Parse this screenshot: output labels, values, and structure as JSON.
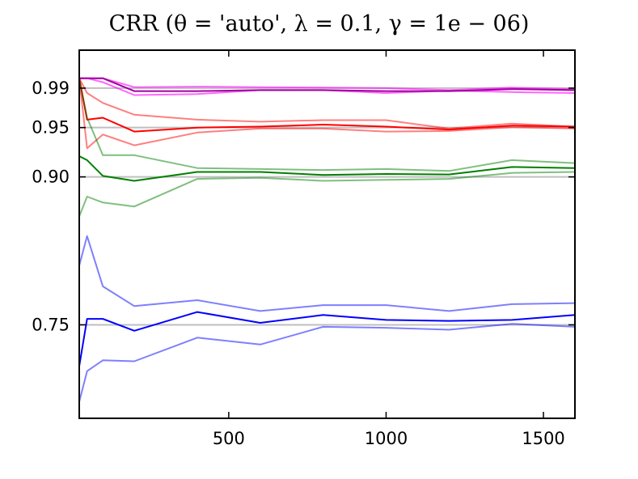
{
  "chart_data": {
    "type": "line",
    "title": "CRR (θ = 'auto', λ = 0.1, γ = 1e − 06)",
    "xlabel": "",
    "ylabel": "",
    "xlim": [
      25,
      1600
    ],
    "ylim": [
      0.6552,
      1.0285
    ],
    "xticks": [
      500,
      1000,
      1500
    ],
    "xtick_labels": [
      "500",
      "1000",
      "1500"
    ],
    "yticks": [
      0.75,
      0.9,
      0.95,
      0.99
    ],
    "ytick_labels": [
      "0.75",
      "0.90",
      "0.95",
      "0.99"
    ],
    "hlines": [
      0.75,
      0.9,
      0.95,
      0.99
    ],
    "hline_color": "#bfbfbf",
    "grid": false,
    "legend": null,
    "series": [
      {
        "color": "#ff00ff",
        "opacity": 0.6,
        "width": 2,
        "x": [
          25,
          50,
          100,
          200,
          400,
          600,
          800,
          1000,
          1200,
          1400,
          1600
        ],
        "y": [
          1.0,
          1.0,
          1.0,
          0.991,
          0.9915,
          0.991,
          0.9905,
          0.99,
          0.988,
          0.9905,
          0.989
        ]
      },
      {
        "color": "#ff00ff",
        "opacity": 0.6,
        "width": 2,
        "x": [
          25,
          50,
          100,
          200,
          400,
          600,
          800,
          1000,
          1200,
          1400,
          1600
        ],
        "y": [
          1.0,
          1.0,
          0.996,
          0.983,
          0.984,
          0.988,
          0.988,
          0.985,
          0.9875,
          0.986,
          0.985
        ]
      },
      {
        "color": "#a000a0",
        "opacity": 1,
        "width": 2,
        "x": [
          25,
          50,
          100,
          200,
          400,
          600,
          800,
          1000,
          1200,
          1400,
          1600
        ],
        "y": [
          1.0,
          1.0,
          1.0,
          0.987,
          0.987,
          0.988,
          0.988,
          0.987,
          0.987,
          0.989,
          0.988
        ]
      },
      {
        "color": "#ff0000",
        "opacity": 0.5,
        "width": 2,
        "x": [
          25,
          50,
          100,
          200,
          400,
          600,
          800,
          1000,
          1200,
          1400,
          1600
        ],
        "y": [
          1.0,
          0.985,
          0.975,
          0.963,
          0.958,
          0.956,
          0.9575,
          0.9575,
          0.949,
          0.954,
          0.951
        ]
      },
      {
        "color": "#ff0000",
        "opacity": 0.5,
        "width": 2,
        "x": [
          25,
          50,
          100,
          200,
          400,
          600,
          800,
          1000,
          1200,
          1400,
          1600
        ],
        "y": [
          1.0,
          0.929,
          0.943,
          0.932,
          0.945,
          0.949,
          0.949,
          0.946,
          0.9465,
          0.9505,
          0.949
        ]
      },
      {
        "color": "#ff0000",
        "opacity": 1,
        "width": 2,
        "x": [
          25,
          50,
          100,
          200,
          400,
          600,
          800,
          1000,
          1200,
          1400,
          1600
        ],
        "y": [
          1.0,
          0.958,
          0.96,
          0.946,
          0.95,
          0.951,
          0.953,
          0.951,
          0.948,
          0.952,
          0.951
        ]
      },
      {
        "color": "#008000",
        "opacity": 0.5,
        "width": 2,
        "x": [
          25,
          50,
          100,
          200,
          400,
          600,
          800,
          1000,
          1200,
          1400,
          1600
        ],
        "y": [
          1.0,
          0.96,
          0.922,
          0.922,
          0.909,
          0.908,
          0.907,
          0.908,
          0.906,
          0.917,
          0.914
        ]
      },
      {
        "color": "#008000",
        "opacity": 0.5,
        "width": 2,
        "x": [
          25,
          50,
          100,
          200,
          400,
          600,
          800,
          1000,
          1200,
          1400,
          1600
        ],
        "y": [
          0.86,
          0.88,
          0.874,
          0.87,
          0.898,
          0.899,
          0.896,
          0.897,
          0.898,
          0.904,
          0.905
        ]
      },
      {
        "color": "#008000",
        "opacity": 1,
        "width": 2,
        "x": [
          25,
          50,
          100,
          200,
          400,
          600,
          800,
          1000,
          1200,
          1400,
          1600
        ],
        "y": [
          0.921,
          0.917,
          0.901,
          0.896,
          0.905,
          0.905,
          0.902,
          0.903,
          0.9025,
          0.91,
          0.909
        ]
      },
      {
        "color": "#0000ff",
        "opacity": 0.5,
        "width": 2,
        "x": [
          25,
          50,
          100,
          200,
          400,
          600,
          800,
          1000,
          1200,
          1400,
          1600
        ],
        "y": [
          0.81,
          0.84,
          0.789,
          0.769,
          0.775,
          0.764,
          0.77,
          0.77,
          0.764,
          0.771,
          0.772
        ]
      },
      {
        "color": "#0000ff",
        "opacity": 0.5,
        "width": 2,
        "x": [
          25,
          50,
          100,
          200,
          400,
          600,
          800,
          1000,
          1200,
          1400,
          1600
        ],
        "y": [
          0.672,
          0.703,
          0.714,
          0.713,
          0.737,
          0.73,
          0.748,
          0.747,
          0.745,
          0.751,
          0.748
        ]
      },
      {
        "color": "#0000ff",
        "opacity": 1,
        "width": 2,
        "x": [
          25,
          50,
          100,
          200,
          400,
          600,
          800,
          1000,
          1200,
          1400,
          1600
        ],
        "y": [
          0.708,
          0.756,
          0.756,
          0.744,
          0.763,
          0.752,
          0.76,
          0.755,
          0.754,
          0.755,
          0.76
        ]
      }
    ]
  }
}
